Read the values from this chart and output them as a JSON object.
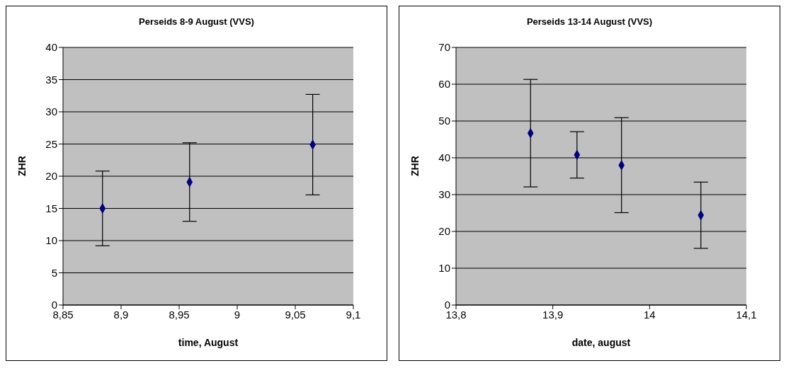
{
  "chart_data": [
    {
      "type": "scatter",
      "title": "Perseids 8-9 August (VVS)",
      "xlabel": "time, August",
      "ylabel": "ZHR",
      "x": [
        8.884,
        8.959,
        9.065
      ],
      "values": [
        15.0,
        19.1,
        24.9
      ],
      "errors": [
        5.8,
        6.1,
        7.8
      ],
      "color": "#000080",
      "marker": "diamond",
      "xlim": [
        8.85,
        9.1
      ],
      "xticks": [
        {
          "value": 8.85,
          "label": "8,85"
        },
        {
          "value": 8.9,
          "label": "8,9"
        },
        {
          "value": 8.95,
          "label": "8,95"
        },
        9,
        {
          "value": 9.05,
          "label": "9,05"
        },
        {
          "value": 9.1,
          "label": "9,1"
        }
      ],
      "ylim": [
        0,
        40
      ],
      "yticks": [
        0,
        5,
        10,
        15,
        20,
        25,
        30,
        35,
        40
      ],
      "grid": "y",
      "legend": false
    },
    {
      "type": "scatter",
      "title": "Perseids 13-14 August (VVS)",
      "xlabel": "date, august",
      "ylabel": "ZHR",
      "x": [
        13.877,
        13.925,
        13.971,
        14.053
      ],
      "values": [
        46.7,
        40.8,
        38.0,
        24.4
      ],
      "errors": [
        14.6,
        6.3,
        12.9,
        9.0
      ],
      "color": "#000080",
      "marker": "diamond",
      "xlim": [
        13.8,
        14.1
      ],
      "xticks": [
        {
          "value": 13.8,
          "label": "13,8"
        },
        {
          "value": 13.9,
          "label": "13,9"
        },
        14,
        {
          "value": 14.1,
          "label": "14,1"
        }
      ],
      "ylim": [
        0,
        70
      ],
      "yticks": [
        0,
        10,
        20,
        30,
        40,
        50,
        60,
        70
      ],
      "grid": "y",
      "legend": false
    }
  ]
}
